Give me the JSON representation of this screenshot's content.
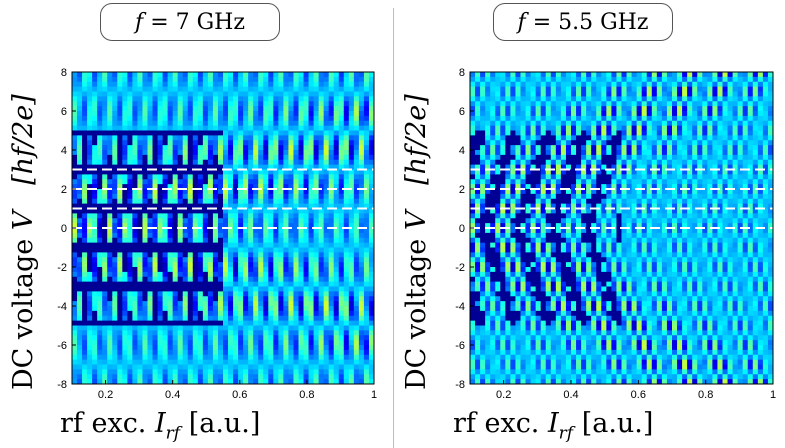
{
  "chart_data": [
    {
      "type": "heatmap",
      "title_var": "f",
      "title_value": "= 7 GHz",
      "ylabel": "DC voltage",
      "ylabel_var": "V",
      "yunit": "[hf/2e]",
      "xlabel": "rf exc.",
      "xlabel_var": "I",
      "xlabel_sub": "rf",
      "xunit": "[a.u.]",
      "xlim": [
        0.1,
        1.0
      ],
      "ylim": [
        -8,
        8
      ],
      "xticks": [
        0.2,
        0.4,
        0.6,
        0.8,
        1
      ],
      "xtick_labels": [
        "0.2",
        "0.4",
        "0.6",
        "0.8",
        "1"
      ],
      "yticks": [
        -8,
        -6,
        -4,
        -2,
        0,
        2,
        4,
        6,
        8
      ],
      "ytick_labels": [
        "-8",
        "-6",
        "-4",
        "-2",
        "0",
        "2",
        "4",
        "6",
        "8"
      ],
      "dashed_lines_y": [
        0,
        1,
        2,
        3
      ],
      "colormap": "jet",
      "step_spacing": 2
    },
    {
      "type": "heatmap",
      "title_var": "f",
      "title_value": "= 5.5 GHz",
      "ylabel": "DC voltage",
      "ylabel_var": "V",
      "yunit": "[hf/2e]",
      "xlabel": "rf exc.",
      "xlabel_var": "I",
      "xlabel_sub": "rf",
      "xunit": "[a.u.]",
      "xlim": [
        0.1,
        1.0
      ],
      "ylim": [
        -8,
        8
      ],
      "xticks": [
        0.2,
        0.4,
        0.6,
        0.8,
        1
      ],
      "xtick_labels": [
        "0.2",
        "0.4",
        "0.6",
        "0.8",
        "1"
      ],
      "yticks": [
        -8,
        -6,
        -4,
        -2,
        0,
        2,
        4,
        6,
        8
      ],
      "ytick_labels": [
        "-8",
        "-6",
        "-4",
        "-2",
        "0",
        "2",
        "4",
        "6",
        "8"
      ],
      "dashed_lines_y": [
        0,
        1,
        2,
        3
      ],
      "colormap": "jet",
      "step_spacing": 1
    }
  ],
  "colors": {
    "dashed": "#ffffff",
    "background_cmap_low": "#00208f",
    "divider": "#bdbdbd"
  }
}
